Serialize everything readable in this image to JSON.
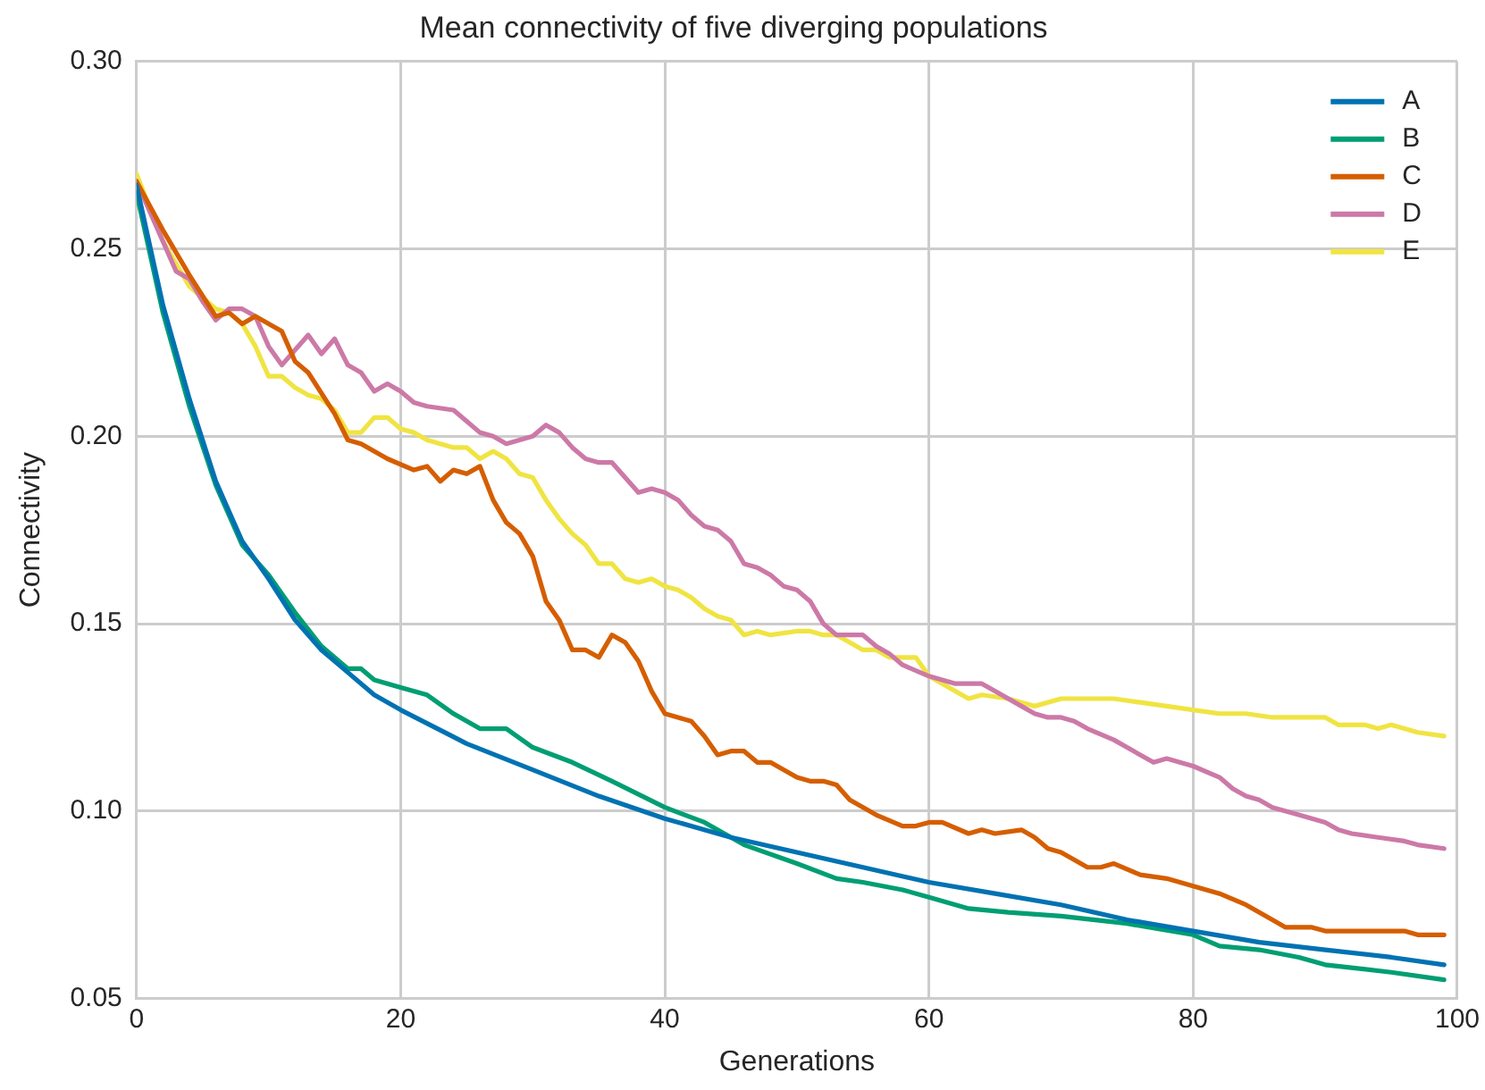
{
  "chart_data": {
    "type": "line",
    "title": "Mean connectivity of five diverging populations",
    "xlabel": "Generations",
    "ylabel": "Connectivity",
    "xlim": [
      0,
      100
    ],
    "xticks": [
      0,
      20,
      40,
      60,
      80,
      100
    ],
    "ylim": [
      0.05,
      0.3
    ],
    "yticks": [
      {
        "value": 0.05,
        "label": "0.05"
      },
      {
        "value": 0.1,
        "label": "0.10"
      },
      {
        "value": 0.15,
        "label": "0.15"
      },
      {
        "value": 0.2,
        "label": "0.20"
      },
      {
        "value": 0.25,
        "label": "0.25"
      },
      {
        "value": 0.3,
        "label": "0.30"
      }
    ],
    "grid": true,
    "legend": "top right",
    "marker": "none",
    "line_style": "solid",
    "series": [
      {
        "name": "A",
        "color": "#0072b2",
        "x": [
          0,
          2,
          4,
          6,
          8,
          10,
          12,
          14,
          16,
          18,
          20,
          25,
          30,
          35,
          40,
          45,
          50,
          55,
          60,
          65,
          70,
          75,
          80,
          85,
          90,
          95,
          99
        ],
        "values": [
          0.267,
          0.235,
          0.21,
          0.188,
          0.172,
          0.162,
          0.151,
          0.143,
          0.137,
          0.131,
          0.127,
          0.118,
          0.111,
          0.104,
          0.098,
          0.093,
          0.089,
          0.085,
          0.081,
          0.078,
          0.075,
          0.071,
          0.068,
          0.065,
          0.063,
          0.061,
          0.059
        ]
      },
      {
        "name": "B",
        "color": "#009e73",
        "x": [
          0,
          2,
          4,
          6,
          8,
          10,
          12,
          14,
          16,
          17,
          18,
          20,
          22,
          24,
          26,
          28,
          30,
          33,
          36,
          40,
          43,
          46,
          50,
          53,
          55,
          58,
          60,
          63,
          66,
          70,
          75,
          80,
          82,
          85,
          88,
          90,
          95,
          99
        ],
        "values": [
          0.265,
          0.233,
          0.208,
          0.187,
          0.171,
          0.163,
          0.153,
          0.144,
          0.138,
          0.138,
          0.135,
          0.133,
          0.131,
          0.126,
          0.122,
          0.122,
          0.117,
          0.113,
          0.108,
          0.101,
          0.097,
          0.091,
          0.086,
          0.082,
          0.081,
          0.079,
          0.077,
          0.074,
          0.073,
          0.072,
          0.07,
          0.067,
          0.064,
          0.063,
          0.061,
          0.059,
          0.057,
          0.055
        ]
      },
      {
        "name": "C",
        "color": "#d55e00",
        "x": [
          0,
          2,
          4,
          6,
          7,
          8,
          9,
          11,
          12,
          13,
          15,
          16,
          17,
          19,
          21,
          22,
          23,
          24,
          25,
          26,
          27,
          28,
          29,
          30,
          31,
          32,
          33,
          34,
          35,
          36,
          37,
          38,
          39,
          40,
          41,
          42,
          43,
          44,
          45,
          46,
          47,
          48,
          50,
          51,
          52,
          53,
          54,
          56,
          58,
          59,
          60,
          61,
          63,
          64,
          65,
          67,
          68,
          69,
          70,
          72,
          73,
          74,
          76,
          78,
          79,
          81,
          82,
          84,
          86,
          87,
          89,
          90,
          92,
          94,
          96,
          97,
          99
        ],
        "values": [
          0.268,
          0.255,
          0.243,
          0.232,
          0.233,
          0.23,
          0.232,
          0.228,
          0.22,
          0.217,
          0.206,
          0.199,
          0.198,
          0.194,
          0.191,
          0.192,
          0.188,
          0.191,
          0.19,
          0.192,
          0.183,
          0.177,
          0.174,
          0.168,
          0.156,
          0.151,
          0.143,
          0.143,
          0.141,
          0.147,
          0.145,
          0.14,
          0.132,
          0.126,
          0.125,
          0.124,
          0.12,
          0.115,
          0.116,
          0.116,
          0.113,
          0.113,
          0.109,
          0.108,
          0.108,
          0.107,
          0.103,
          0.099,
          0.096,
          0.096,
          0.097,
          0.097,
          0.094,
          0.095,
          0.094,
          0.095,
          0.093,
          0.09,
          0.089,
          0.085,
          0.085,
          0.086,
          0.083,
          0.082,
          0.081,
          0.079,
          0.078,
          0.075,
          0.071,
          0.069,
          0.069,
          0.068,
          0.068,
          0.068,
          0.068,
          0.067,
          0.067
        ]
      },
      {
        "name": "D",
        "color": "#cc79a7",
        "x": [
          0,
          2,
          3,
          4,
          5,
          6,
          7,
          8,
          9,
          10,
          11,
          12,
          13,
          14,
          15,
          16,
          17,
          18,
          19,
          20,
          21,
          22,
          24,
          25,
          26,
          27,
          28,
          29,
          30,
          31,
          32,
          33,
          34,
          35,
          36,
          37,
          38,
          39,
          40,
          41,
          42,
          43,
          44,
          45,
          46,
          47,
          48,
          49,
          50,
          51,
          52,
          53,
          54,
          55,
          56,
          57,
          58,
          60,
          62,
          64,
          65,
          67,
          68,
          69,
          70,
          71,
          72,
          74,
          75,
          76,
          77,
          78,
          80,
          82,
          83,
          84,
          85,
          86,
          88,
          90,
          91,
          92,
          94,
          96,
          97,
          99
        ],
        "values": [
          0.268,
          0.252,
          0.244,
          0.242,
          0.236,
          0.231,
          0.234,
          0.234,
          0.232,
          0.224,
          0.219,
          0.223,
          0.227,
          0.222,
          0.226,
          0.219,
          0.217,
          0.212,
          0.214,
          0.212,
          0.209,
          0.208,
          0.207,
          0.204,
          0.201,
          0.2,
          0.198,
          0.199,
          0.2,
          0.203,
          0.201,
          0.197,
          0.194,
          0.193,
          0.193,
          0.189,
          0.185,
          0.186,
          0.185,
          0.183,
          0.179,
          0.176,
          0.175,
          0.172,
          0.166,
          0.165,
          0.163,
          0.16,
          0.159,
          0.156,
          0.15,
          0.147,
          0.147,
          0.147,
          0.144,
          0.142,
          0.139,
          0.136,
          0.134,
          0.134,
          0.132,
          0.128,
          0.126,
          0.125,
          0.125,
          0.124,
          0.122,
          0.119,
          0.117,
          0.115,
          0.113,
          0.114,
          0.112,
          0.109,
          0.106,
          0.104,
          0.103,
          0.101,
          0.099,
          0.097,
          0.095,
          0.094,
          0.093,
          0.092,
          0.091,
          0.09
        ]
      },
      {
        "name": "E",
        "color": "#f0e442",
        "x": [
          0,
          2,
          4,
          6,
          7,
          8,
          9,
          10,
          11,
          12,
          13,
          14,
          15,
          16,
          17,
          18,
          19,
          20,
          21,
          22,
          24,
          25,
          26,
          27,
          28,
          29,
          30,
          31,
          32,
          33,
          34,
          35,
          36,
          37,
          38,
          39,
          40,
          41,
          42,
          43,
          44,
          45,
          46,
          47,
          48,
          50,
          51,
          52,
          53,
          54,
          55,
          56,
          57,
          59,
          60,
          61,
          63,
          64,
          66,
          67,
          68,
          70,
          72,
          74,
          76,
          78,
          80,
          82,
          84,
          86,
          88,
          90,
          91,
          92,
          93,
          94,
          95,
          97,
          99
        ],
        "values": [
          0.27,
          0.252,
          0.24,
          0.234,
          0.233,
          0.23,
          0.224,
          0.216,
          0.216,
          0.213,
          0.211,
          0.21,
          0.207,
          0.201,
          0.201,
          0.205,
          0.205,
          0.202,
          0.201,
          0.199,
          0.197,
          0.197,
          0.194,
          0.196,
          0.194,
          0.19,
          0.189,
          0.183,
          0.178,
          0.174,
          0.171,
          0.166,
          0.166,
          0.162,
          0.161,
          0.162,
          0.16,
          0.159,
          0.157,
          0.154,
          0.152,
          0.151,
          0.147,
          0.148,
          0.147,
          0.148,
          0.148,
          0.147,
          0.147,
          0.145,
          0.143,
          0.143,
          0.141,
          0.141,
          0.136,
          0.134,
          0.13,
          0.131,
          0.13,
          0.129,
          0.128,
          0.13,
          0.13,
          0.13,
          0.129,
          0.128,
          0.127,
          0.126,
          0.126,
          0.125,
          0.125,
          0.125,
          0.123,
          0.123,
          0.123,
          0.122,
          0.123,
          0.121,
          0.12
        ]
      }
    ]
  }
}
